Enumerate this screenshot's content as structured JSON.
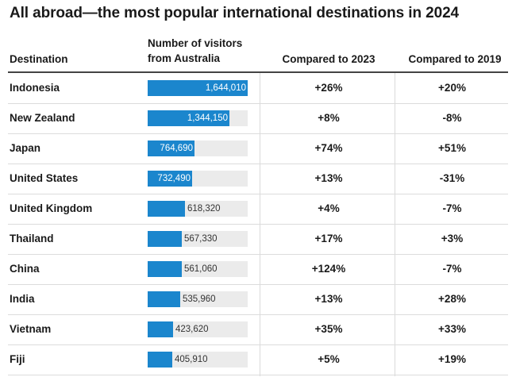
{
  "title": "All abroad—the most popular international destinations in 2024",
  "headers": {
    "destination": "Destination",
    "visitors_line1": "Number of visitors",
    "visitors_line2": "from Australia",
    "compared_2023": "Compared to 2023",
    "compared_2019": "Compared to 2019"
  },
  "colors": {
    "bar": "#1b86cd",
    "bar_track": "#ebebeb"
  },
  "chart_data": {
    "type": "table",
    "title": "All abroad—the most popular international destinations in 2024",
    "columns": [
      "Destination",
      "Number of visitors from Australia",
      "Compared to 2023",
      "Compared to 2019"
    ],
    "bar_max": 1644010,
    "rows": [
      {
        "destination": "Indonesia",
        "visitors": 1644010,
        "visitors_label": "1,644,010",
        "vs_2023": "+26%",
        "vs_2019": "+20%"
      },
      {
        "destination": "New Zealand",
        "visitors": 1344150,
        "visitors_label": "1,344,150",
        "vs_2023": "+8%",
        "vs_2019": "-8%"
      },
      {
        "destination": "Japan",
        "visitors": 764690,
        "visitors_label": "764,690",
        "vs_2023": "+74%",
        "vs_2019": "+51%"
      },
      {
        "destination": "United States",
        "visitors": 732490,
        "visitors_label": "732,490",
        "vs_2023": "+13%",
        "vs_2019": "-31%"
      },
      {
        "destination": "United Kingdom",
        "visitors": 618320,
        "visitors_label": "618,320",
        "vs_2023": "+4%",
        "vs_2019": "-7%"
      },
      {
        "destination": "Thailand",
        "visitors": 567330,
        "visitors_label": "567,330",
        "vs_2023": "+17%",
        "vs_2019": "+3%"
      },
      {
        "destination": "China",
        "visitors": 561060,
        "visitors_label": "561,060",
        "vs_2023": "+124%",
        "vs_2019": "-7%"
      },
      {
        "destination": "India",
        "visitors": 535960,
        "visitors_label": "535,960",
        "vs_2023": "+13%",
        "vs_2019": "+28%"
      },
      {
        "destination": "Vietnam",
        "visitors": 423620,
        "visitors_label": "423,620",
        "vs_2023": "+35%",
        "vs_2019": "+33%"
      },
      {
        "destination": "Fiji",
        "visitors": 405910,
        "visitors_label": "405,910",
        "vs_2023": "+5%",
        "vs_2019": "+19%"
      }
    ]
  }
}
